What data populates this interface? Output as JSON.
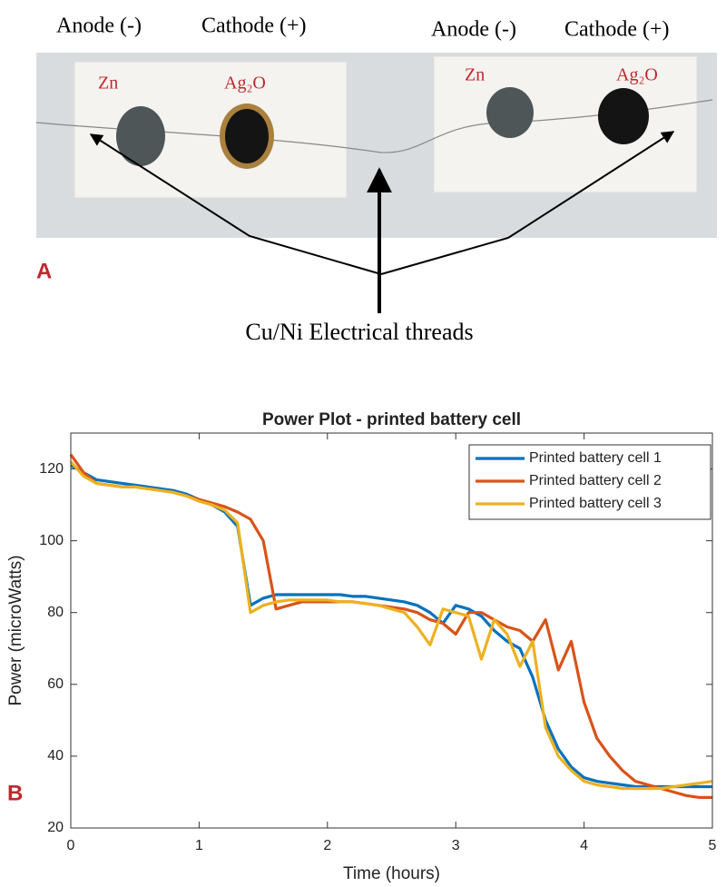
{
  "panel_a": {
    "tag": "A",
    "left_anode": "Anode (-)",
    "left_cathode": "Cathode (+)",
    "right_anode": "Anode (-)",
    "right_cathode": "Cathode (+)",
    "left_zn": "Zn",
    "left_ag2o": "Ag₂O",
    "right_zn": "Zn",
    "right_ag2o": "Ag₂O",
    "threads": "Cu/Ni Electrical threads"
  },
  "panel_b": {
    "tag": "B"
  },
  "chart_data": {
    "type": "line",
    "title": "Power Plot - printed battery cell",
    "xlabel": "Time (hours)",
    "ylabel": "Power (microWatts)",
    "xlim": [
      0,
      5
    ],
    "ylim": [
      20,
      130
    ],
    "xticks": [
      0,
      1,
      2,
      3,
      4,
      5
    ],
    "yticks": [
      20,
      40,
      60,
      80,
      100,
      120
    ],
    "legend": "upper right",
    "x": [
      0,
      0.1,
      0.2,
      0.3,
      0.4,
      0.5,
      0.6,
      0.7,
      0.8,
      0.9,
      1,
      1.1,
      1.2,
      1.3,
      1.4,
      1.5,
      1.6,
      1.7,
      1.8,
      1.9,
      2,
      2.1,
      2.2,
      2.3,
      2.4,
      2.5,
      2.6,
      2.7,
      2.8,
      2.9,
      3,
      3.1,
      3.2,
      3.3,
      3.4,
      3.5,
      3.6,
      3.7,
      3.8,
      3.9,
      4,
      4.1,
      4.2,
      4.3,
      4.4,
      4.5,
      4.6,
      4.7,
      4.8,
      4.9,
      5
    ],
    "series": [
      {
        "name": "Printed battery cell 1",
        "color": "#0072bd",
        "values": [
          121,
          119,
          117,
          116.5,
          116,
          115.5,
          115,
          114.5,
          114,
          113,
          111.5,
          110,
          108,
          104,
          82,
          84,
          85,
          85,
          85,
          85,
          85,
          85,
          84.5,
          84.5,
          84,
          83.5,
          83,
          82,
          80,
          77,
          82,
          81,
          79,
          75,
          72,
          70,
          62,
          50,
          42,
          37,
          34,
          33,
          32.5,
          32,
          31.5,
          31.5,
          31.5,
          31.5,
          31.5,
          31.5,
          31.5
        ]
      },
      {
        "name": "Printed battery cell 2",
        "color": "#d95319",
        "values": [
          124,
          119,
          116,
          115.5,
          115,
          115,
          114.5,
          114,
          113.5,
          112.5,
          111.5,
          110.5,
          109.5,
          108,
          106,
          100,
          81,
          82,
          83,
          83,
          83,
          83,
          83,
          82.5,
          82,
          81.5,
          81,
          80,
          78,
          77,
          74,
          80,
          80,
          78,
          76,
          75,
          72,
          78,
          64,
          72,
          55,
          45,
          40,
          36,
          33,
          32,
          31,
          30,
          29,
          28.5,
          28.5
        ]
      },
      {
        "name": "Printed battery cell 3",
        "color": "#edb120",
        "values": [
          122,
          118,
          116,
          115.5,
          115,
          115,
          114.5,
          114,
          113.5,
          112.5,
          111,
          110,
          108.5,
          105,
          80,
          82,
          83,
          83.5,
          83.5,
          83.5,
          83.5,
          83,
          83,
          82.5,
          82,
          81,
          80,
          76,
          71,
          81,
          80,
          79,
          67,
          78,
          74,
          65,
          72,
          48,
          40,
          36,
          33,
          32,
          31.5,
          31,
          31,
          31,
          31,
          31.5,
          32,
          32.5,
          33
        ]
      }
    ]
  }
}
